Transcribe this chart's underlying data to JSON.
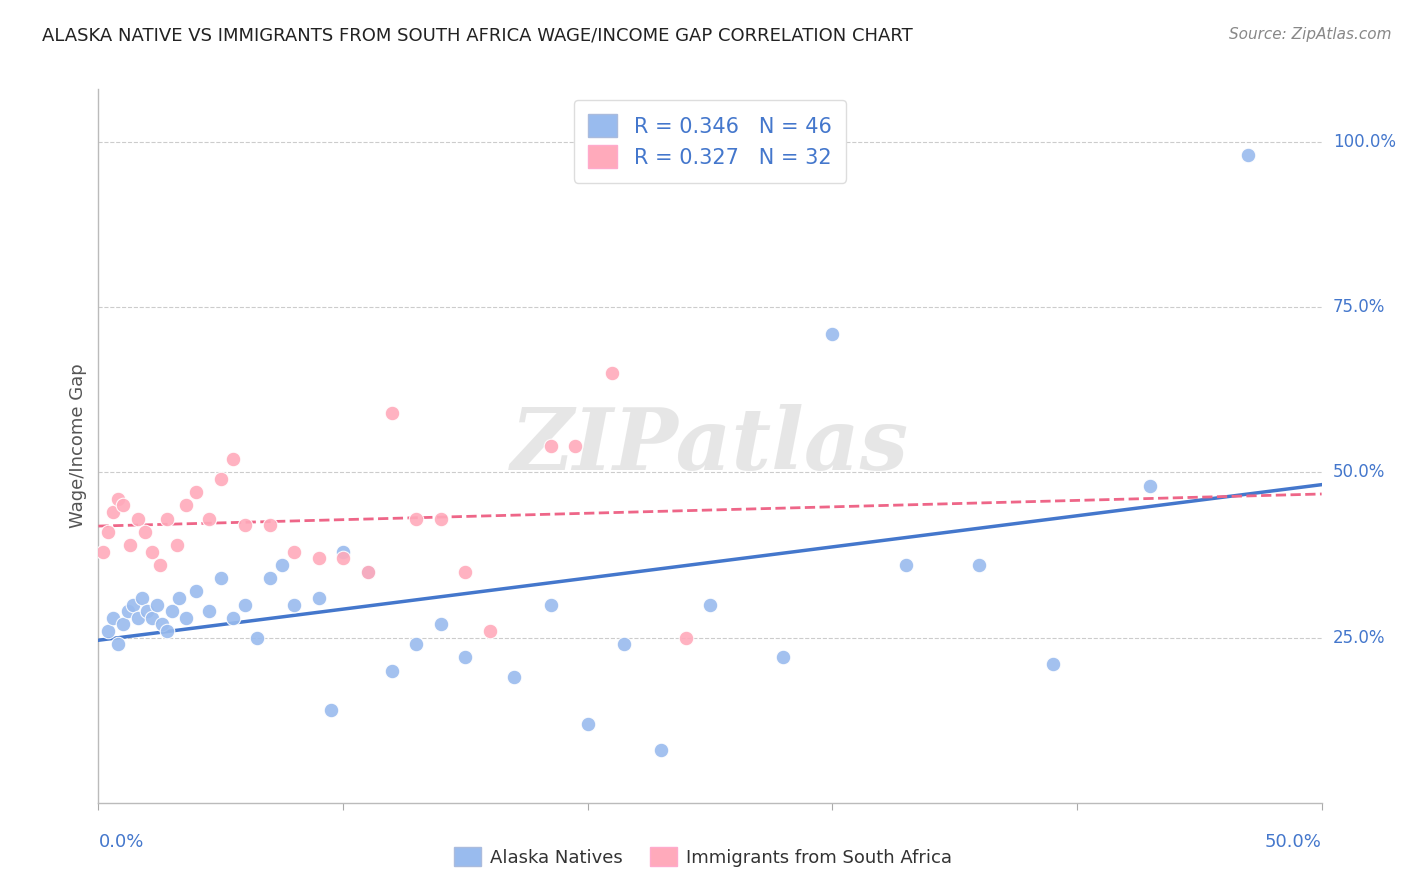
{
  "title": "ALASKA NATIVE VS IMMIGRANTS FROM SOUTH AFRICA WAGE/INCOME GAP CORRELATION CHART",
  "source": "Source: ZipAtlas.com",
  "ylabel": "Wage/Income Gap",
  "ylabel_right_ticks": [
    "100.0%",
    "75.0%",
    "50.0%",
    "25.0%"
  ],
  "ylabel_right_vals": [
    1.0,
    0.75,
    0.5,
    0.25
  ],
  "watermark": "ZIPatlas",
  "legend_r1": "R = 0.346",
  "legend_n1": "N = 46",
  "legend_r2": "R = 0.327",
  "legend_n2": "N = 32",
  "color_blue": "#99BBEE",
  "color_blue_line": "#4477CC",
  "color_pink": "#FFAABB",
  "color_pink_line": "#EE6688",
  "color_label_blue": "#4477CC",
  "background": "#FFFFFF",
  "xlim": [
    0.0,
    0.5
  ],
  "ylim": [
    0.0,
    1.08
  ],
  "alaska_x": [
    0.004,
    0.006,
    0.008,
    0.01,
    0.012,
    0.014,
    0.016,
    0.018,
    0.02,
    0.022,
    0.024,
    0.026,
    0.028,
    0.03,
    0.033,
    0.036,
    0.04,
    0.045,
    0.05,
    0.055,
    0.06,
    0.065,
    0.07,
    0.075,
    0.08,
    0.09,
    0.095,
    0.1,
    0.11,
    0.12,
    0.13,
    0.14,
    0.15,
    0.17,
    0.185,
    0.2,
    0.215,
    0.23,
    0.25,
    0.28,
    0.3,
    0.33,
    0.36,
    0.39,
    0.43,
    0.47
  ],
  "alaska_y": [
    0.26,
    0.28,
    0.24,
    0.27,
    0.29,
    0.3,
    0.28,
    0.31,
    0.29,
    0.28,
    0.3,
    0.27,
    0.26,
    0.29,
    0.31,
    0.28,
    0.32,
    0.29,
    0.34,
    0.28,
    0.3,
    0.25,
    0.34,
    0.36,
    0.3,
    0.31,
    0.14,
    0.38,
    0.35,
    0.2,
    0.24,
    0.27,
    0.22,
    0.19,
    0.3,
    0.12,
    0.24,
    0.08,
    0.3,
    0.22,
    0.71,
    0.36,
    0.36,
    0.21,
    0.48,
    0.98
  ],
  "southafrica_x": [
    0.002,
    0.004,
    0.006,
    0.008,
    0.01,
    0.013,
    0.016,
    0.019,
    0.022,
    0.025,
    0.028,
    0.032,
    0.036,
    0.04,
    0.045,
    0.05,
    0.055,
    0.06,
    0.07,
    0.08,
    0.09,
    0.1,
    0.11,
    0.12,
    0.13,
    0.14,
    0.15,
    0.16,
    0.185,
    0.195,
    0.21,
    0.24
  ],
  "southafrica_y": [
    0.38,
    0.41,
    0.44,
    0.46,
    0.45,
    0.39,
    0.43,
    0.41,
    0.38,
    0.36,
    0.43,
    0.39,
    0.45,
    0.47,
    0.43,
    0.49,
    0.52,
    0.42,
    0.42,
    0.38,
    0.37,
    0.37,
    0.35,
    0.59,
    0.43,
    0.43,
    0.35,
    0.26,
    0.54,
    0.54,
    0.65,
    0.25
  ]
}
